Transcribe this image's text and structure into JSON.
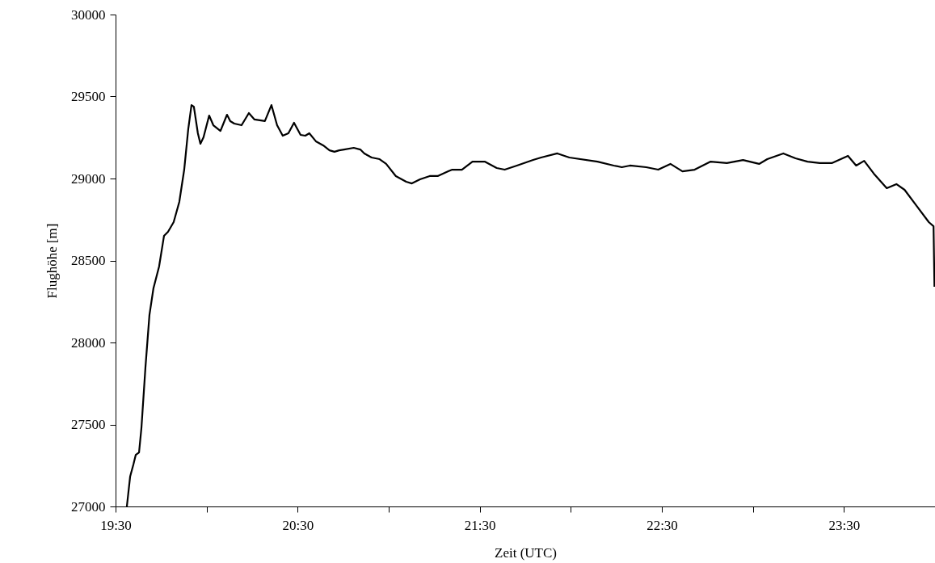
{
  "chart_data": {
    "type": "line",
    "xlabel": "Zeit (UTC)",
    "ylabel": "Flughöhe [m]",
    "xlim": [
      19.5,
      24
    ],
    "xticks": [
      {
        "value": 19.5,
        "label": "19:30"
      },
      {
        "value": 20,
        "label": null
      },
      {
        "value": 20.5,
        "label": "20:30"
      },
      {
        "value": 21,
        "label": null
      },
      {
        "value": 21.5,
        "label": "21:30"
      },
      {
        "value": 22,
        "label": null
      },
      {
        "value": 22.5,
        "label": "22:30"
      },
      {
        "value": 23,
        "label": null
      },
      {
        "value": 23.5,
        "label": "23:30"
      }
    ],
    "ylim": [
      27000,
      30000
    ],
    "yticks": [
      27000,
      27500,
      28000,
      28500,
      29000,
      29500,
      30000
    ],
    "grid": false,
    "marker": "none",
    "line_style": "solid",
    "series": [
      {
        "color": "#000000",
        "x": [
          19.562,
          19.58,
          19.598,
          19.611,
          19.629,
          19.642,
          19.664,
          19.686,
          19.708,
          19.739,
          19.766,
          19.788,
          19.819,
          19.85,
          19.877,
          19.899,
          19.917,
          19.93,
          19.952,
          19.966,
          19.983,
          20.014,
          20.037,
          20.076,
          20.112,
          20.13,
          20.152,
          20.192,
          20.232,
          20.263,
          20.32,
          20.356,
          20.387,
          20.418,
          20.449,
          20.48,
          20.516,
          20.542,
          20.564,
          20.6,
          20.64,
          20.675,
          20.702,
          20.728,
          20.755,
          20.808,
          20.844,
          20.866,
          20.906,
          20.95,
          20.986,
          21.039,
          21.096,
          21.127,
          21.172,
          21.225,
          21.269,
          21.327,
          21.349,
          21.402,
          21.46,
          21.527,
          21.593,
          21.637,
          21.704,
          21.793,
          21.837,
          21.926,
          21.992,
          22.147,
          22.236,
          22.28,
          22.325,
          22.414,
          22.48,
          22.547,
          22.613,
          22.68,
          22.768,
          22.857,
          22.946,
          23.034,
          23.079,
          23.167,
          23.234,
          23.3,
          23.367,
          23.433,
          23.522,
          23.567,
          23.611,
          23.664,
          23.735,
          23.788,
          23.833,
          23.899,
          23.966,
          23.992,
          23.997
        ],
        "values": [
          27000,
          27182,
          27256,
          27315,
          27330,
          27478,
          27847,
          28167,
          28330,
          28463,
          28650,
          28675,
          28734,
          28857,
          29054,
          29300,
          29448,
          29438,
          29276,
          29212,
          29251,
          29384,
          29325,
          29290,
          29389,
          29350,
          29335,
          29325,
          29399,
          29360,
          29350,
          29448,
          29325,
          29261,
          29276,
          29340,
          29266,
          29261,
          29276,
          29227,
          29202,
          29172,
          29163,
          29172,
          29177,
          29187,
          29177,
          29153,
          29128,
          29118,
          29089,
          29015,
          28980,
          28970,
          28995,
          29015,
          29015,
          29044,
          29054,
          29054,
          29103,
          29103,
          29064,
          29054,
          29079,
          29113,
          29128,
          29153,
          29128,
          29103,
          29079,
          29069,
          29079,
          29069,
          29054,
          29089,
          29044,
          29054,
          29103,
          29094,
          29113,
          29089,
          29118,
          29153,
          29123,
          29103,
          29094,
          29094,
          29138,
          29079,
          29108,
          29030,
          28941,
          28966,
          28931,
          28833,
          28734,
          28709,
          28340
        ]
      }
    ]
  }
}
